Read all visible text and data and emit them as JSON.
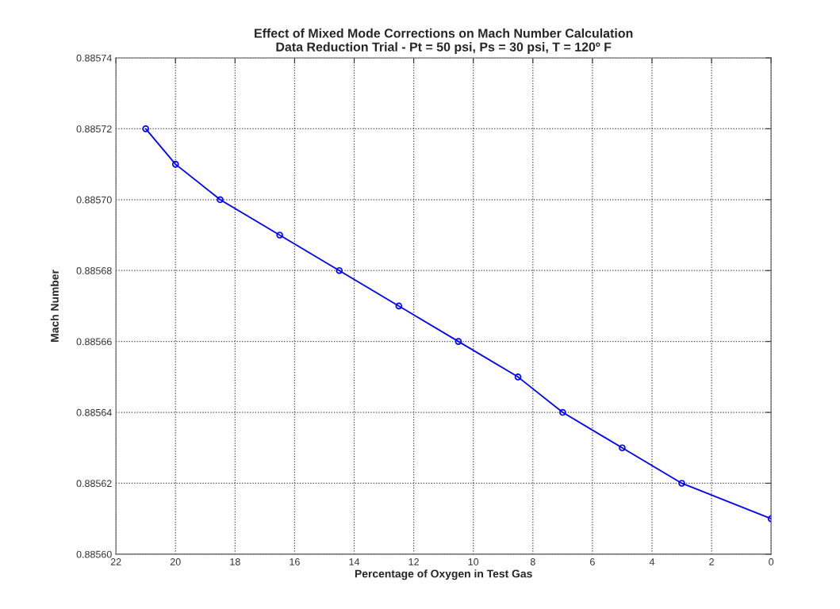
{
  "chart_data": {
    "type": "line",
    "title": "Effect of Mixed Mode Corrections on Mach Number Calculation\nData Reduction Trial - Pt = 50 psi, Ps = 30 psi, T = 120º F",
    "xlabel": "Percentage of Oxygen in Test Gas",
    "ylabel": "Mach Number",
    "x": [
      21,
      20,
      18.5,
      16.5,
      14.5,
      12.5,
      10.5,
      8.5,
      7,
      5,
      3,
      0
    ],
    "series": [
      {
        "color": "#0000ff",
        "values": [
          0.88572,
          0.88571,
          0.8857,
          0.88569,
          0.88568,
          0.88567,
          0.88566,
          0.88565,
          0.88564,
          0.88563,
          0.88562,
          0.88561
        ]
      }
    ],
    "xlim": [
      22,
      0
    ],
    "xticks": [
      22,
      20,
      18,
      16,
      14,
      12,
      10,
      8,
      6,
      4,
      2,
      0
    ],
    "ylim": [
      0.8856,
      0.88574
    ],
    "yticks": [
      {
        "value": 0.8856,
        "label": "0.88560"
      },
      {
        "value": 0.88562,
        "label": "0.88562"
      },
      {
        "value": 0.88564,
        "label": "0.88564"
      },
      {
        "value": 0.88566,
        "label": "0.88566"
      },
      {
        "value": 0.88568,
        "label": "0.88568"
      },
      {
        "value": 0.8857,
        "label": "0.88570"
      },
      {
        "value": 0.88572,
        "label": "0.88572"
      },
      {
        "value": 0.88574,
        "label": "0.88574"
      }
    ],
    "grid": true,
    "marker": "circle",
    "line_style": "solid"
  }
}
